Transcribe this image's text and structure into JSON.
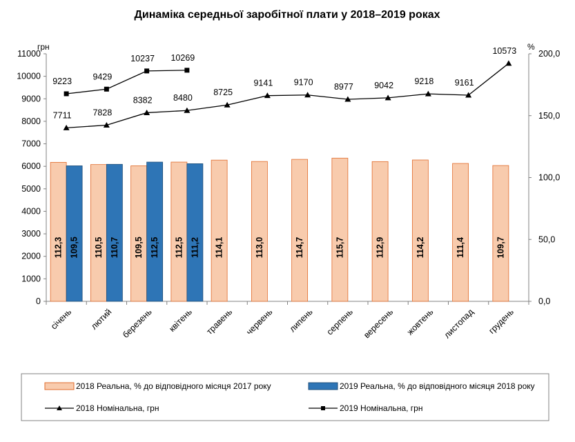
{
  "chart_data": {
    "type": "bar+line",
    "title": "Динаміка середньої заробітної плати у 2018–2019 роках",
    "categories": [
      "січень",
      "лютий",
      "березень",
      "квітень",
      "травень",
      "червень",
      "липень",
      "серпень",
      "вересень",
      "жовтень",
      "листопад",
      "грудень"
    ],
    "left_axis": {
      "unit": "грн",
      "min": 0,
      "max": 11000,
      "step": 1000,
      "ticks": [
        "0",
        "1000",
        "2000",
        "3000",
        "4000",
        "5000",
        "6000",
        "7000",
        "8000",
        "9000",
        "10000",
        "11000"
      ]
    },
    "right_axis": {
      "unit": "%",
      "min": 0,
      "max": 200,
      "step": 50,
      "ticks": [
        "0,0",
        "50,0",
        "100,0",
        "150,0",
        "200,0"
      ]
    },
    "bar_series": [
      {
        "name": "2018 Реальна, % до відповідного місяця 2017 року",
        "color": "#f8cbad",
        "edge": "#e06b2b",
        "values": [
          112.3,
          110.5,
          109.5,
          112.5,
          114.1,
          113.0,
          114.7,
          115.7,
          112.9,
          114.2,
          111.4,
          109.7
        ],
        "labels": [
          "112,3",
          "110,5",
          "109,5",
          "112,5",
          "114,1",
          "113,0",
          "114,7",
          "115,7",
          "112,9",
          "114,2",
          "111,4",
          "109,7"
        ]
      },
      {
        "name": "2019 Реальна, % до відповідного місяця 2018 року",
        "color": "#2e75b6",
        "edge": "#1f4e79",
        "values": [
          109.5,
          110.7,
          112.5,
          111.2,
          null,
          null,
          null,
          null,
          null,
          null,
          null,
          null
        ],
        "labels": [
          "109,5",
          "110,7",
          "112,5",
          "111,2",
          "",
          "",
          "",
          "",
          "",
          "",
          "",
          ""
        ]
      }
    ],
    "line_series": [
      {
        "name": "2018 Номінальна, грн",
        "marker": "triangle",
        "values": [
          7711,
          7828,
          8382,
          8480,
          8725,
          9141,
          9170,
          8977,
          9042,
          9218,
          9161,
          10573
        ]
      },
      {
        "name": "2019 Номінальна, грн",
        "marker": "square",
        "values": [
          9223,
          9429,
          10237,
          10269,
          null,
          null,
          null,
          null,
          null,
          null,
          null,
          null
        ]
      }
    ]
  }
}
